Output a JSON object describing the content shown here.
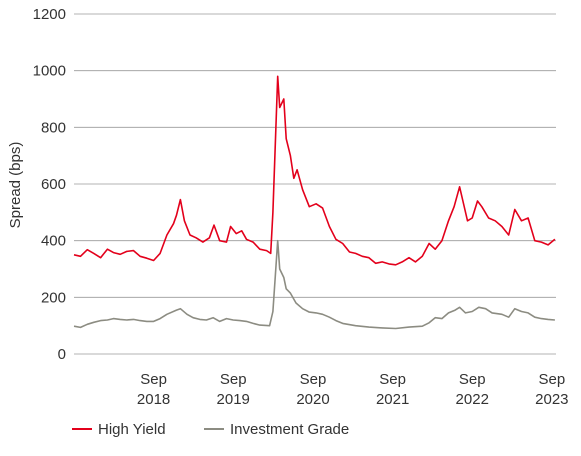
{
  "chart_data": {
    "type": "line",
    "ylabel": "Spread (bps)",
    "xlabel": "",
    "ylim": [
      0,
      1200
    ],
    "yticks": [
      "0",
      "200",
      "400",
      "600",
      "800",
      "1000",
      "1200"
    ],
    "xticks": [
      {
        "month": "Sep",
        "year": "2018",
        "date": "2018-09-01"
      },
      {
        "month": "Sep",
        "year": "2019",
        "date": "2019-09-01"
      },
      {
        "month": "Sep",
        "year": "2020",
        "date": "2020-09-01"
      },
      {
        "month": "Sep",
        "year": "2021",
        "date": "2021-09-01"
      },
      {
        "month": "Sep",
        "year": "2022",
        "date": "2022-09-01"
      },
      {
        "month": "Sep",
        "year": "2023",
        "date": "2023-09-01"
      }
    ],
    "xrange": [
      "2017-09-01",
      "2023-09-20"
    ],
    "grid": "horizontal",
    "legend_position": "bottom",
    "series": [
      {
        "name": "High Yield",
        "color": "#e3001b",
        "points": [
          [
            "2017-09-01",
            350
          ],
          [
            "2017-10-01",
            345
          ],
          [
            "2017-11-01",
            368
          ],
          [
            "2017-12-01",
            355
          ],
          [
            "2018-01-01",
            340
          ],
          [
            "2018-02-01",
            370
          ],
          [
            "2018-03-01",
            358
          ],
          [
            "2018-04-01",
            352
          ],
          [
            "2018-05-01",
            362
          ],
          [
            "2018-06-01",
            365
          ],
          [
            "2018-07-01",
            345
          ],
          [
            "2018-08-01",
            338
          ],
          [
            "2018-09-01",
            330
          ],
          [
            "2018-10-01",
            355
          ],
          [
            "2018-11-01",
            420
          ],
          [
            "2018-12-01",
            460
          ],
          [
            "2018-12-15",
            490
          ],
          [
            "2019-01-02",
            545
          ],
          [
            "2019-01-20",
            470
          ],
          [
            "2019-02-15",
            420
          ],
          [
            "2019-03-15",
            410
          ],
          [
            "2019-04-15",
            395
          ],
          [
            "2019-05-15",
            410
          ],
          [
            "2019-06-05",
            455
          ],
          [
            "2019-07-01",
            400
          ],
          [
            "2019-08-01",
            395
          ],
          [
            "2019-08-20",
            450
          ],
          [
            "2019-09-15",
            425
          ],
          [
            "2019-10-10",
            435
          ],
          [
            "2019-11-01",
            405
          ],
          [
            "2019-12-01",
            395
          ],
          [
            "2020-01-01",
            370
          ],
          [
            "2020-02-01",
            365
          ],
          [
            "2020-02-20",
            355
          ],
          [
            "2020-03-01",
            500
          ],
          [
            "2020-03-23",
            980
          ],
          [
            "2020-04-01",
            870
          ],
          [
            "2020-04-20",
            900
          ],
          [
            "2020-05-01",
            760
          ],
          [
            "2020-05-20",
            700
          ],
          [
            "2020-06-05",
            620
          ],
          [
            "2020-06-20",
            650
          ],
          [
            "2020-07-15",
            580
          ],
          [
            "2020-08-15",
            520
          ],
          [
            "2020-09-15",
            530
          ],
          [
            "2020-10-15",
            515
          ],
          [
            "2020-11-15",
            450
          ],
          [
            "2020-12-15",
            405
          ],
          [
            "2021-01-15",
            390
          ],
          [
            "2021-02-15",
            360
          ],
          [
            "2021-03-15",
            355
          ],
          [
            "2021-04-15",
            345
          ],
          [
            "2021-05-15",
            340
          ],
          [
            "2021-06-15",
            320
          ],
          [
            "2021-07-15",
            325
          ],
          [
            "2021-08-15",
            318
          ],
          [
            "2021-09-15",
            315
          ],
          [
            "2021-10-15",
            325
          ],
          [
            "2021-11-15",
            340
          ],
          [
            "2021-12-15",
            325
          ],
          [
            "2022-01-15",
            345
          ],
          [
            "2022-02-15",
            390
          ],
          [
            "2022-03-15",
            370
          ],
          [
            "2022-04-15",
            400
          ],
          [
            "2022-05-15",
            470
          ],
          [
            "2022-06-10",
            520
          ],
          [
            "2022-07-05",
            590
          ],
          [
            "2022-07-20",
            540
          ],
          [
            "2022-08-10",
            470
          ],
          [
            "2022-09-01",
            480
          ],
          [
            "2022-09-25",
            540
          ],
          [
            "2022-10-15",
            520
          ],
          [
            "2022-11-15",
            480
          ],
          [
            "2022-12-15",
            470
          ],
          [
            "2023-01-15",
            450
          ],
          [
            "2023-02-15",
            420
          ],
          [
            "2023-03-15",
            510
          ],
          [
            "2023-04-15",
            470
          ],
          [
            "2023-05-15",
            480
          ],
          [
            "2023-06-15",
            400
          ],
          [
            "2023-07-15",
            395
          ],
          [
            "2023-08-15",
            385
          ],
          [
            "2023-09-15",
            405
          ]
        ]
      },
      {
        "name": "Investment Grade",
        "color": "#8c8c82",
        "points": [
          [
            "2017-09-01",
            98
          ],
          [
            "2017-10-01",
            94
          ],
          [
            "2017-11-01",
            105
          ],
          [
            "2017-12-01",
            112
          ],
          [
            "2018-01-01",
            118
          ],
          [
            "2018-02-01",
            120
          ],
          [
            "2018-03-01",
            125
          ],
          [
            "2018-04-01",
            122
          ],
          [
            "2018-05-01",
            120
          ],
          [
            "2018-06-01",
            122
          ],
          [
            "2018-07-01",
            118
          ],
          [
            "2018-08-01",
            115
          ],
          [
            "2018-09-01",
            115
          ],
          [
            "2018-10-01",
            125
          ],
          [
            "2018-11-01",
            140
          ],
          [
            "2018-12-15",
            155
          ],
          [
            "2019-01-02",
            160
          ],
          [
            "2019-02-01",
            140
          ],
          [
            "2019-03-01",
            128
          ],
          [
            "2019-04-01",
            122
          ],
          [
            "2019-05-01",
            120
          ],
          [
            "2019-06-01",
            128
          ],
          [
            "2019-07-01",
            115
          ],
          [
            "2019-08-01",
            125
          ],
          [
            "2019-09-01",
            120
          ],
          [
            "2019-10-01",
            118
          ],
          [
            "2019-11-01",
            115
          ],
          [
            "2019-12-01",
            108
          ],
          [
            "2020-01-01",
            102
          ],
          [
            "2020-02-15",
            100
          ],
          [
            "2020-03-01",
            150
          ],
          [
            "2020-03-23",
            400
          ],
          [
            "2020-04-01",
            300
          ],
          [
            "2020-04-20",
            270
          ],
          [
            "2020-05-01",
            230
          ],
          [
            "2020-05-20",
            215
          ],
          [
            "2020-06-15",
            180
          ],
          [
            "2020-07-15",
            160
          ],
          [
            "2020-08-15",
            148
          ],
          [
            "2020-09-15",
            145
          ],
          [
            "2020-10-15",
            140
          ],
          [
            "2020-11-15",
            130
          ],
          [
            "2020-12-15",
            118
          ],
          [
            "2021-01-15",
            108
          ],
          [
            "2021-03-15",
            100
          ],
          [
            "2021-05-15",
            95
          ],
          [
            "2021-07-15",
            92
          ],
          [
            "2021-09-15",
            90
          ],
          [
            "2021-11-15",
            95
          ],
          [
            "2022-01-15",
            98
          ],
          [
            "2022-02-15",
            110
          ],
          [
            "2022-03-15",
            128
          ],
          [
            "2022-04-15",
            125
          ],
          [
            "2022-05-15",
            145
          ],
          [
            "2022-06-15",
            155
          ],
          [
            "2022-07-05",
            165
          ],
          [
            "2022-08-01",
            145
          ],
          [
            "2022-09-01",
            150
          ],
          [
            "2022-10-01",
            165
          ],
          [
            "2022-11-01",
            160
          ],
          [
            "2022-12-01",
            145
          ],
          [
            "2023-01-15",
            140
          ],
          [
            "2023-02-15",
            130
          ],
          [
            "2023-03-15",
            160
          ],
          [
            "2023-04-15",
            150
          ],
          [
            "2023-05-15",
            145
          ],
          [
            "2023-06-15",
            130
          ],
          [
            "2023-07-15",
            125
          ],
          [
            "2023-08-15",
            122
          ],
          [
            "2023-09-15",
            120
          ]
        ]
      }
    ]
  }
}
